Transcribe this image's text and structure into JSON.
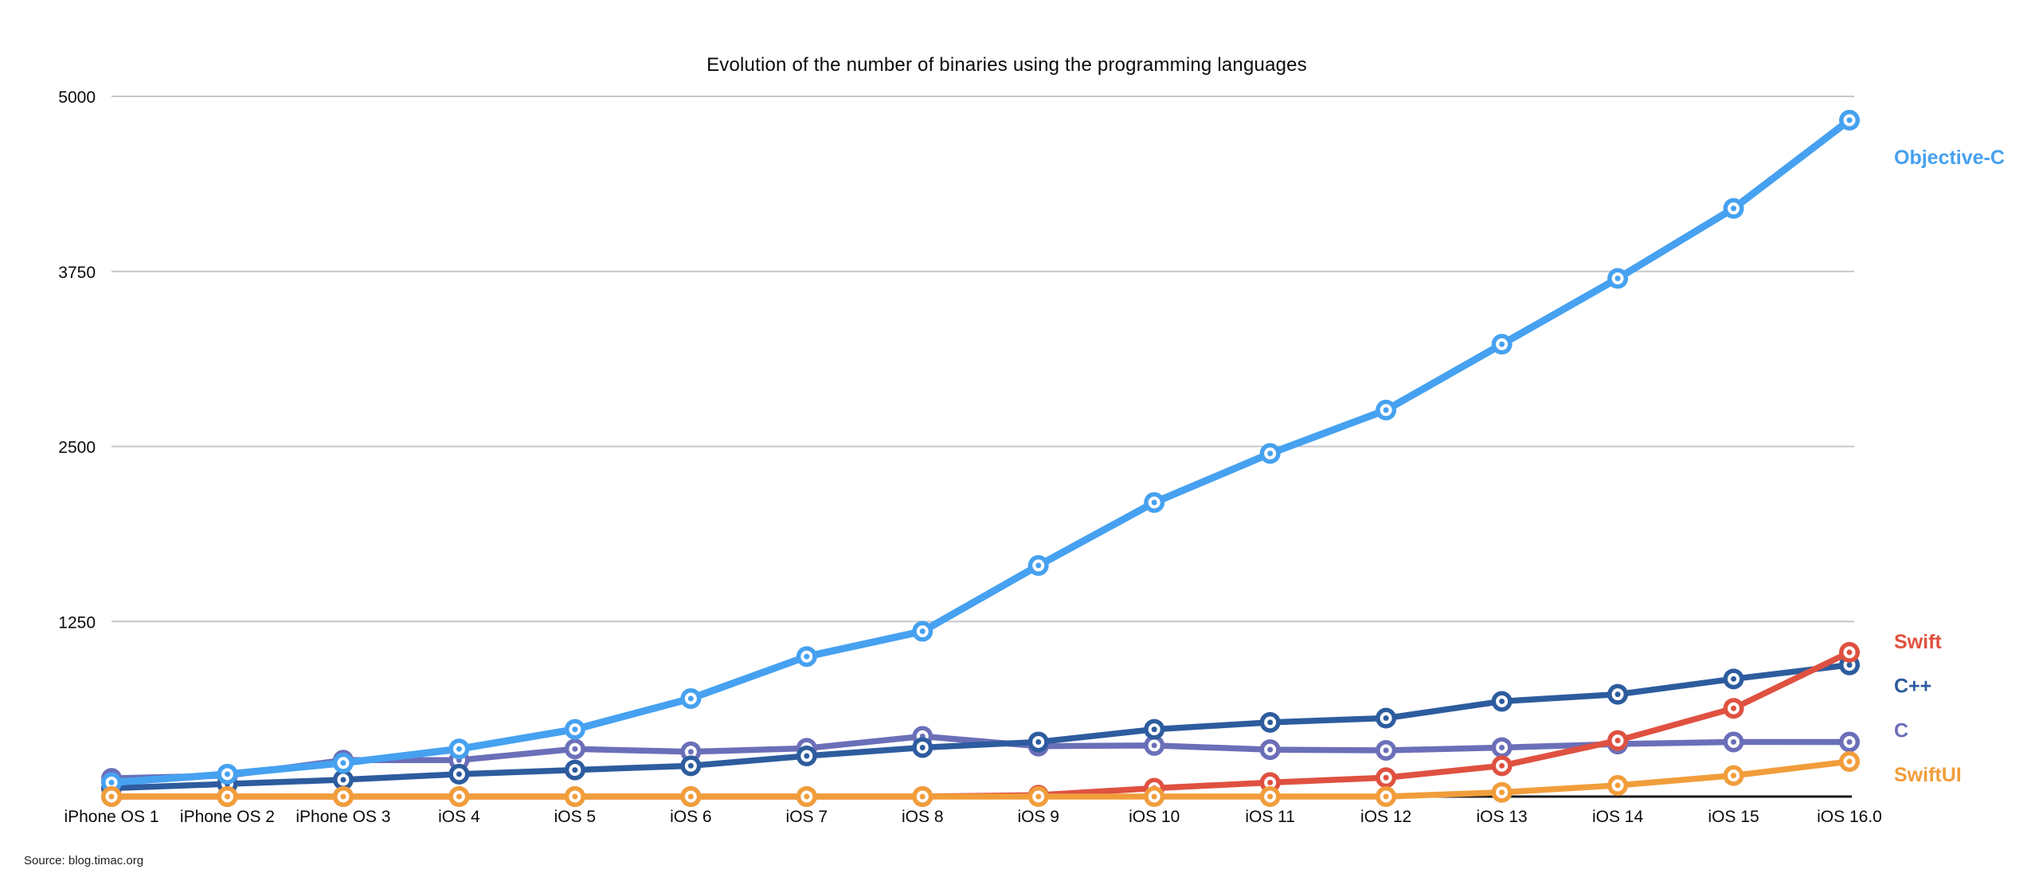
{
  "title": "Evolution of the number of binaries using the programming languages",
  "source": "Source: blog.timac.org",
  "chart_data": {
    "type": "line",
    "title": "Evolution of the number of binaries using the programming languages",
    "xlabel": "",
    "ylabel": "",
    "ylim": [
      0,
      5000
    ],
    "yticks": [
      1250,
      2500,
      3750,
      5000
    ],
    "grid": true,
    "legend_position": "right-end-labels",
    "categories": [
      "iPhone OS 1",
      "iPhone OS 2",
      "iPhone OS 3",
      "iOS 4",
      "iOS 5",
      "iOS 6",
      "iOS 7",
      "iOS 8",
      "iOS 9",
      "iOS 10",
      "iOS 11",
      "iOS 12",
      "iOS 13",
      "iOS 14",
      "iOS 15",
      "iOS 16.0"
    ],
    "series": [
      {
        "name": "Objective-C",
        "color": "#46a1f0",
        "values": [
          100,
          160,
          240,
          340,
          480,
          700,
          1000,
          1180,
          1650,
          2100,
          2450,
          2760,
          3230,
          3700,
          4200,
          4830
        ]
      },
      {
        "name": "Swift",
        "color": "#df5140",
        "values": [
          0,
          0,
          0,
          0,
          0,
          0,
          0,
          0,
          10,
          60,
          100,
          135,
          220,
          400,
          630,
          1030
        ]
      },
      {
        "name": "C++",
        "color": "#2d5c9e",
        "values": [
          60,
          90,
          120,
          160,
          190,
          220,
          290,
          350,
          390,
          480,
          530,
          560,
          680,
          730,
          840,
          940
        ]
      },
      {
        "name": "C",
        "color": "#6b6fb8",
        "values": [
          130,
          150,
          260,
          260,
          340,
          320,
          345,
          430,
          360,
          365,
          335,
          330,
          350,
          375,
          390,
          390
        ]
      },
      {
        "name": "SwiftUI",
        "color": "#f19d3b",
        "values": [
          0,
          0,
          0,
          0,
          0,
          0,
          0,
          0,
          0,
          0,
          0,
          0,
          30,
          80,
          150,
          250
        ]
      }
    ],
    "colors": {
      "grid": "#c7c7c7",
      "axis": "#1a1a1a",
      "tick_text": "#0a0a0a"
    }
  }
}
